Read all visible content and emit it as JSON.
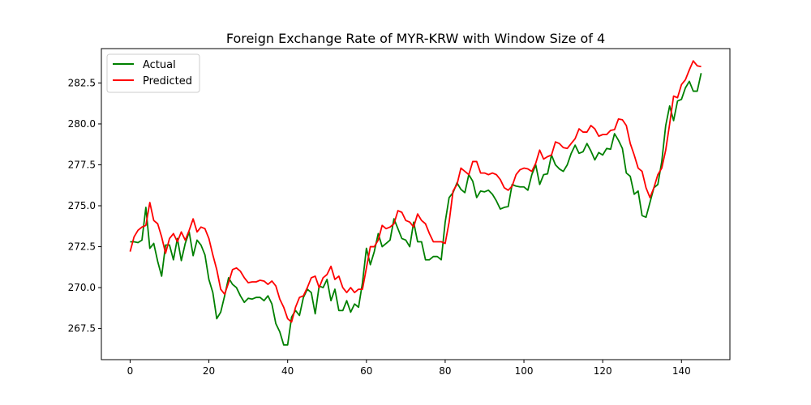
{
  "chart_data": {
    "type": "line",
    "title": "Foreign Exchange Rate of MYR-KRW with Window Size of 4",
    "xlabel": "",
    "ylabel": "",
    "xlim": [
      -7.3,
      152.3
    ],
    "ylim": [
      265.6,
      284.6
    ],
    "x_ticks": [
      0,
      20,
      40,
      60,
      80,
      100,
      120,
      140
    ],
    "x_tick_labels": [
      "0",
      "20",
      "40",
      "60",
      "80",
      "100",
      "120",
      "140"
    ],
    "y_ticks": [
      267.5,
      270.0,
      272.5,
      275.0,
      277.5,
      280.0,
      282.5
    ],
    "y_tick_labels": [
      "267.5",
      "270.0",
      "272.5",
      "275.0",
      "277.5",
      "280.0",
      "282.5"
    ],
    "grid": false,
    "legend_position": "top-left",
    "series": [
      {
        "name": "Actual",
        "color": "#008000",
        "values": [
          272.8,
          272.8,
          272.75,
          272.9,
          274.9,
          272.4,
          272.7,
          271.6,
          270.7,
          272.6,
          272.6,
          271.7,
          273.0,
          271.65,
          272.7,
          273.4,
          271.95,
          272.9,
          272.6,
          272.0,
          270.5,
          269.7,
          268.1,
          268.5,
          269.5,
          270.6,
          270.2,
          270.0,
          269.5,
          269.1,
          269.35,
          269.3,
          269.4,
          269.4,
          269.2,
          269.5,
          269.0,
          267.8,
          267.3,
          266.5,
          266.5,
          268.2,
          268.6,
          268.3,
          269.4,
          269.9,
          269.7,
          268.4,
          270.1,
          270.0,
          270.5,
          269.2,
          269.9,
          268.6,
          268.6,
          269.2,
          268.5,
          269.0,
          268.8,
          270.3,
          272.4,
          271.4,
          272.2,
          273.3,
          272.5,
          272.7,
          272.9,
          274.2,
          273.6,
          273.0,
          272.9,
          272.5,
          274.0,
          272.8,
          272.8,
          271.7,
          271.7,
          271.9,
          271.9,
          271.7,
          274.0,
          275.5,
          275.8,
          276.4,
          276.0,
          275.8,
          276.9,
          276.5,
          275.5,
          275.9,
          275.85,
          275.95,
          275.7,
          275.3,
          274.8,
          274.9,
          274.95,
          276.3,
          276.2,
          276.15,
          276.15,
          275.95,
          276.9,
          277.5,
          276.3,
          276.9,
          276.95,
          278.1,
          277.5,
          277.25,
          277.1,
          277.5,
          278.2,
          278.7,
          278.2,
          278.3,
          278.8,
          278.35,
          277.8,
          278.25,
          278.1,
          278.5,
          278.45,
          279.4,
          279.0,
          278.5,
          277.0,
          276.8,
          275.7,
          275.9,
          274.4,
          274.3,
          275.2,
          276.1,
          276.3,
          277.7,
          279.9,
          281.1,
          280.2,
          281.4,
          281.5,
          282.2,
          282.6,
          282.0,
          282.0,
          283.1
        ]
      },
      {
        "name": "Predicted",
        "color": "#ff0000",
        "values": [
          272.2,
          273.1,
          273.5,
          273.7,
          273.8,
          275.2,
          274.1,
          273.9,
          273.1,
          272.1,
          273.0,
          273.3,
          272.8,
          273.4,
          272.9,
          273.5,
          274.2,
          273.4,
          273.7,
          273.6,
          273.0,
          272.0,
          271.1,
          269.9,
          269.6,
          270.3,
          271.1,
          271.2,
          271.0,
          270.6,
          270.3,
          270.35,
          270.35,
          270.45,
          270.4,
          270.2,
          270.4,
          270.1,
          269.3,
          268.8,
          268.1,
          267.9,
          268.8,
          269.4,
          269.5,
          270.0,
          270.6,
          270.7,
          270.0,
          270.6,
          270.8,
          271.3,
          270.5,
          270.7,
          270.0,
          269.7,
          270.0,
          269.7,
          269.9,
          269.9,
          271.2,
          272.5,
          272.5,
          272.9,
          273.8,
          273.6,
          273.7,
          273.9,
          274.7,
          274.6,
          274.1,
          274.0,
          273.7,
          274.5,
          274.1,
          273.9,
          273.3,
          272.8,
          272.8,
          272.8,
          272.7,
          274.0,
          275.9,
          276.3,
          277.3,
          277.1,
          276.9,
          277.7,
          277.7,
          277.0,
          277.0,
          276.9,
          277.0,
          276.9,
          276.6,
          276.1,
          275.95,
          276.2,
          276.9,
          277.2,
          277.3,
          277.25,
          277.1,
          277.6,
          278.4,
          277.85,
          278.0,
          278.1,
          278.9,
          278.8,
          278.55,
          278.5,
          278.8,
          279.1,
          279.7,
          279.5,
          279.5,
          279.9,
          279.7,
          279.25,
          279.35,
          279.35,
          279.6,
          279.65,
          280.3,
          280.25,
          279.9,
          278.8,
          278.1,
          277.3,
          277.1,
          276.1,
          275.5,
          276.1,
          276.9,
          277.3,
          278.4,
          280.0,
          281.7,
          281.6,
          282.4,
          282.7,
          283.3,
          283.85,
          283.55,
          283.5
        ]
      }
    ]
  }
}
